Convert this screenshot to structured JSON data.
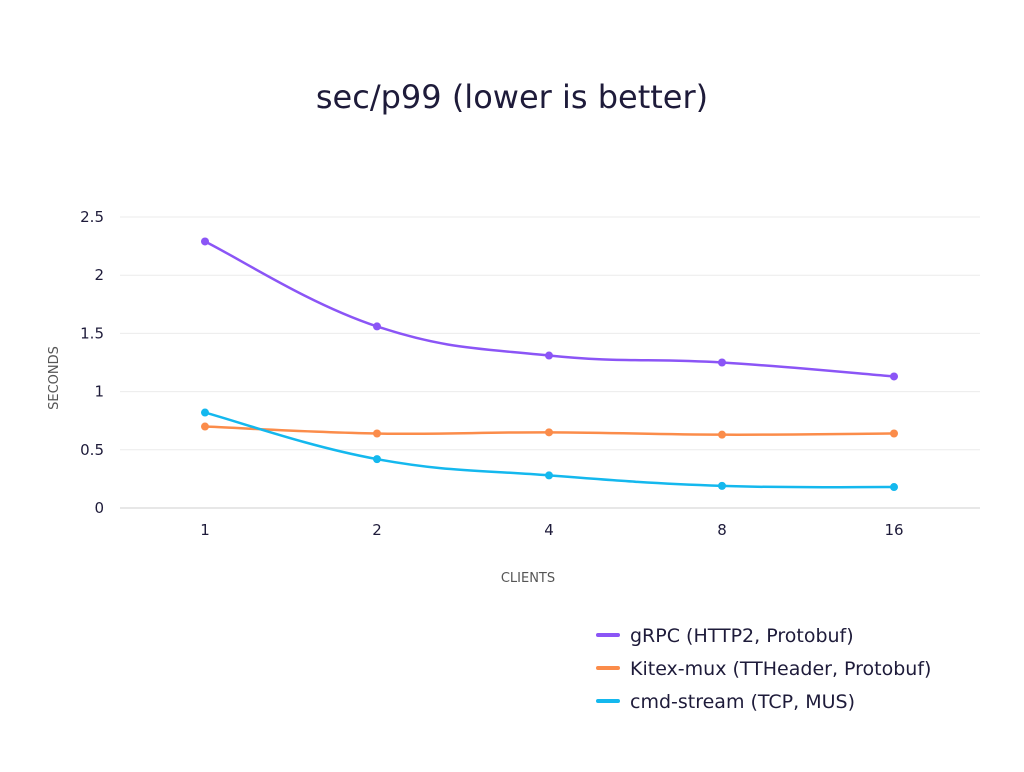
{
  "chart_data": {
    "type": "line",
    "title": "sec/p99 (lower is better)",
    "xlabel": "CLIENTS",
    "ylabel": "SECONDS",
    "categories": [
      "1",
      "2",
      "4",
      "8",
      "16"
    ],
    "ylim": [
      0,
      2.5
    ],
    "yticks": [
      {
        "value": 0,
        "label": "0"
      },
      {
        "value": 0.5,
        "label": "0.5"
      },
      {
        "value": 1,
        "label": "1"
      },
      {
        "value": 1.5,
        "label": "1.5"
      },
      {
        "value": 2,
        "label": "2"
      },
      {
        "value": 2.5,
        "label": "2.5"
      }
    ],
    "grid": true,
    "legend_position": "bottom-right",
    "series": [
      {
        "name": "gRPC (HTTP2, Protobuf)",
        "color": "#8b55f6",
        "values": [
          2.29,
          1.56,
          1.31,
          1.25,
          1.13
        ]
      },
      {
        "name": "Kitex-mux (TTHeader, Protobuf)",
        "color": "#fb8c4a",
        "values": [
          0.7,
          0.64,
          0.65,
          0.63,
          0.64
        ]
      },
      {
        "name": "cmd-stream (TCP, MUS)",
        "color": "#14b8ee",
        "values": [
          0.82,
          0.42,
          0.28,
          0.19,
          0.18
        ]
      }
    ]
  }
}
